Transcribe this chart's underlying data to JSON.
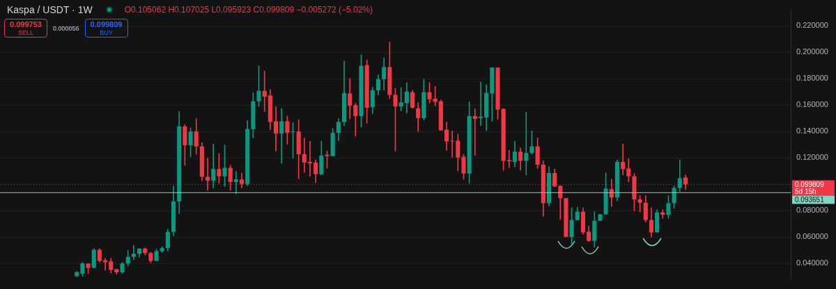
{
  "chart_data": {
    "type": "candlestick",
    "title": "Kaspa / USDT · 1W",
    "categories": [
      null,
      null,
      null,
      null,
      null,
      null,
      null,
      null,
      null,
      null,
      null,
      null,
      null,
      null,
      null,
      null,
      null,
      null,
      null,
      null,
      null,
      null,
      null,
      null,
      null,
      null,
      null,
      null,
      null,
      null,
      null,
      null,
      null,
      null,
      null,
      null,
      null,
      null,
      null,
      null,
      null,
      null,
      null,
      null,
      null,
      null,
      null,
      null,
      null,
      null,
      null,
      null,
      null,
      null,
      null,
      null,
      null,
      null,
      null,
      null,
      null,
      null,
      null,
      null,
      null,
      null,
      null,
      null,
      null,
      null,
      null,
      null,
      null,
      null,
      null,
      null,
      null,
      null,
      null,
      null,
      null,
      null,
      null,
      null,
      null,
      null,
      null,
      null,
      null,
      null,
      null,
      null,
      null,
      null,
      null,
      null,
      null,
      null,
      null,
      null,
      null,
      null,
      null,
      null,
      null,
      null,
      null,
      null,
      null,
      null,
      null,
      null,
      null,
      null,
      null,
      null,
      null,
      null,
      null,
      null,
      null,
      null,
      null,
      null,
      null,
      null,
      null,
      null,
      null,
      null,
      null,
      null,
      null,
      null,
      null,
      null,
      null,
      null,
      null
    ],
    "ohlc": [
      null,
      null,
      null,
      null,
      null,
      null,
      null,
      null,
      null,
      null,
      null,
      null,
      null,
      [
        0.0305,
        0.034,
        0.03,
        0.0335
      ],
      [
        0.0323,
        0.0411,
        0.0303,
        0.04
      ],
      [
        0.04,
        0.04,
        0.0323,
        0.0367
      ],
      [
        0.0367,
        0.0513,
        0.0367,
        0.0504
      ],
      [
        0.0504,
        0.0513,
        0.041,
        0.042
      ],
      [
        0.0425,
        0.044,
        0.035,
        0.041
      ],
      [
        0.0416,
        0.044,
        0.0328,
        0.0352
      ],
      [
        0.0357,
        0.0357,
        0.0318,
        0.0333
      ],
      [
        0.0333,
        0.0411,
        0.0323,
        0.04
      ],
      [
        0.04,
        0.0499,
        0.0381,
        0.045
      ],
      [
        0.045,
        0.0538,
        0.043,
        0.0474
      ],
      [
        0.0474,
        0.0513,
        0.045,
        0.0513
      ],
      [
        0.0513,
        0.0518,
        0.0465,
        0.048
      ],
      [
        0.048,
        0.0485,
        0.0406,
        0.042
      ],
      [
        0.042,
        0.0509,
        0.042,
        0.0494
      ],
      [
        0.0494,
        0.0528,
        0.0484,
        0.0518
      ],
      [
        0.0518,
        0.066,
        0.0494,
        0.064
      ],
      [
        0.064,
        0.0988,
        0.061,
        0.087
      ],
      [
        0.087,
        0.155,
        0.0778,
        0.1438
      ],
      [
        0.1438,
        0.1452,
        0.1144,
        0.1296
      ],
      [
        0.1296,
        0.1428,
        0.1208,
        0.14
      ],
      [
        0.14,
        0.1496,
        0.1227,
        0.1286
      ],
      [
        0.1286,
        0.1315,
        0.1027,
        0.1056
      ],
      [
        0.1056,
        0.1198,
        0.0954,
        0.1027
      ],
      [
        0.1027,
        0.1305,
        0.0973,
        0.1115
      ],
      [
        0.1115,
        0.1232,
        0.1007,
        0.1061
      ],
      [
        0.1061,
        0.1296,
        0.0983,
        0.1125
      ],
      [
        0.1125,
        0.1144,
        0.0954,
        0.1017
      ],
      [
        0.1017,
        0.1095,
        0.0929,
        0.1037
      ],
      [
        0.1037,
        0.1085,
        0.0973,
        0.1002
      ],
      [
        0.1002,
        0.1482,
        0.0988,
        0.1418
      ],
      [
        0.1418,
        0.1692,
        0.135,
        0.1628
      ],
      [
        0.1628,
        0.1897,
        0.1589,
        0.1707
      ],
      [
        0.1707,
        0.1858,
        0.155,
        0.1663
      ],
      [
        0.1672,
        0.1716,
        0.1413,
        0.1472
      ],
      [
        0.1477,
        0.1589,
        0.1252,
        0.1384
      ],
      [
        0.1384,
        0.1574,
        0.1159,
        0.1477
      ],
      [
        0.1477,
        0.1516,
        0.1301,
        0.1389
      ],
      [
        0.1394,
        0.1467,
        0.1198,
        0.14
      ],
      [
        0.14,
        0.1487,
        0.1042,
        0.1227
      ],
      [
        0.1227,
        0.135,
        0.109,
        0.1164
      ],
      [
        0.1169,
        0.1325,
        0.1061,
        0.1159
      ],
      [
        0.1164,
        0.1183,
        0.1012,
        0.1076
      ],
      [
        0.1076,
        0.1325,
        0.1071,
        0.1218
      ],
      [
        0.1223,
        0.1252,
        0.112,
        0.1213
      ],
      [
        0.1213,
        0.1423,
        0.1213,
        0.1389
      ],
      [
        0.1389,
        0.1497,
        0.133,
        0.1472
      ],
      [
        0.1472,
        0.1932,
        0.1443,
        0.1692
      ],
      [
        0.1687,
        0.18,
        0.1496,
        0.1594
      ],
      [
        0.1599,
        0.1614,
        0.1364,
        0.1516
      ],
      [
        0.1516,
        0.198,
        0.1433,
        0.1897
      ],
      [
        0.1902,
        0.1941,
        0.1462,
        0.158
      ],
      [
        0.1584,
        0.1736,
        0.1535,
        0.1711
      ],
      [
        0.1711,
        0.1829,
        0.1677,
        0.1795
      ],
      [
        0.1795,
        0.1956,
        0.1711,
        0.1887
      ],
      [
        0.1887,
        0.2078,
        0.1648,
        0.1677
      ],
      [
        0.1677,
        0.1726,
        0.1252,
        0.1589
      ],
      [
        0.1589,
        0.1731,
        0.1555,
        0.1619
      ],
      [
        0.1614,
        0.177,
        0.154,
        0.1702
      ],
      [
        0.1697,
        0.1711,
        0.1575,
        0.158
      ],
      [
        0.1575,
        0.1619,
        0.14,
        0.1501
      ],
      [
        0.1501,
        0.1795,
        0.1487,
        0.1697
      ],
      [
        0.1697,
        0.177,
        0.1614,
        0.1643
      ],
      [
        0.1648,
        0.1741,
        0.1594,
        0.1624
      ],
      [
        0.1628,
        0.1638,
        0.1408,
        0.1408
      ],
      [
        0.1413,
        0.1472,
        0.1257,
        0.1325
      ],
      [
        0.133,
        0.1403,
        0.1203,
        0.1325
      ],
      [
        0.133,
        0.1379,
        0.11,
        0.1203
      ],
      [
        0.1208,
        0.1227,
        0.1037,
        0.1081
      ],
      [
        0.1081,
        0.1624,
        0.1007,
        0.1516
      ],
      [
        0.1516,
        0.157,
        0.1218,
        0.1496
      ],
      [
        0.1501,
        0.1775,
        0.1443,
        0.1511
      ],
      [
        0.1506,
        0.1755,
        0.1408,
        0.1692
      ],
      [
        0.1687,
        0.1883,
        0.1477,
        0.1883
      ],
      [
        0.1883,
        0.1883,
        0.1491,
        0.1565
      ],
      [
        0.157,
        0.1574,
        0.1105,
        0.1178
      ],
      [
        0.1183,
        0.1257,
        0.1125,
        0.1174
      ],
      [
        0.1169,
        0.1325,
        0.113,
        0.1247
      ],
      [
        0.1247,
        0.1276,
        0.1105,
        0.1178
      ],
      [
        0.1178,
        0.1545,
        0.1071,
        0.1237
      ],
      [
        0.1237,
        0.1403,
        0.1227,
        0.1286
      ],
      [
        0.1286,
        0.135,
        0.112,
        0.1149
      ],
      [
        0.1149,
        0.1178,
        0.0758,
        0.0856
      ],
      [
        0.0856,
        0.1134,
        0.0836,
        0.1086
      ],
      [
        0.1086,
        0.1115,
        0.0983,
        0.0983
      ],
      [
        0.0988,
        0.0988,
        0.0734,
        0.0895
      ],
      [
        0.0895,
        0.0895,
        0.0602,
        0.0602
      ],
      [
        0.0602,
        0.0822,
        0.0548,
        0.0729
      ],
      [
        0.0729,
        0.0826,
        0.0729,
        0.0792
      ],
      [
        0.0792,
        0.0822,
        0.0621,
        0.0636
      ],
      [
        0.0641,
        0.0685,
        0.0567,
        0.0572
      ],
      [
        0.0572,
        0.0792,
        0.0523,
        0.0724
      ],
      [
        0.0724,
        0.0773,
        0.0724,
        0.0773
      ],
      [
        0.0773,
        0.1086,
        0.0773,
        0.0968
      ],
      [
        0.0963,
        0.1037,
        0.0831,
        0.09
      ],
      [
        0.09,
        0.1183,
        0.0875,
        0.1169
      ],
      [
        0.1169,
        0.1305,
        0.1071,
        0.1115
      ],
      [
        0.112,
        0.1193,
        0.1017,
        0.1061
      ],
      [
        0.1061,
        0.1081,
        0.0797,
        0.0885
      ],
      [
        0.0885,
        0.0914,
        0.0792,
        0.0861
      ],
      [
        0.0861,
        0.0914,
        0.0714,
        0.0729
      ],
      [
        0.0729,
        0.0822,
        0.0602,
        0.0636
      ],
      [
        0.0636,
        0.0807,
        0.0636,
        0.0787
      ],
      [
        0.0787,
        0.0807,
        0.0743,
        0.0768
      ],
      [
        0.0768,
        0.0914,
        0.0743,
        0.0856
      ],
      [
        0.0856,
        0.0988,
        0.0817,
        0.0973
      ],
      [
        0.0973,
        0.1183,
        0.0944,
        0.1046
      ],
      [
        0.105062,
        0.107025,
        0.095923,
        0.099809
      ],
      null,
      null,
      null,
      null,
      null,
      null,
      null,
      null,
      null,
      null,
      null,
      null,
      null,
      null,
      null,
      null,
      null,
      null
    ],
    "colors": [
      null,
      null,
      null,
      null,
      null,
      null,
      null,
      null,
      null,
      null,
      null,
      null,
      null,
      "#089981",
      "#089981",
      "#f23645",
      "#089981",
      "#f23645",
      "#f23645",
      "#f23645",
      "#f23645",
      "#089981",
      "#089981",
      "#089981",
      "#089981",
      "#f23645",
      "#f23645",
      "#089981",
      "#089981",
      "#089981",
      "#089981",
      "#089981",
      "#f23645",
      "#089981",
      "#f23645",
      "#f23645",
      "#f23645",
      "#089981",
      "#f23645",
      "#089981",
      "#f23645",
      "#089981",
      "#f23645",
      "#089981",
      "#089981",
      "#089981",
      "#f23645",
      "#f23645",
      "#f23645",
      "#089981",
      "#f23645",
      "#089981",
      "#f23645",
      "#f23645",
      "#f23645",
      "#f23645",
      "#089981",
      "#f23645",
      "#089981",
      "#089981",
      "#089981",
      "#f23645",
      "#f23645",
      "#089981",
      "#f23645",
      "#089981",
      "#089981",
      "#089981",
      "#f23645",
      "#f23645",
      "#089981",
      "#089981",
      "#f23645",
      "#f23645",
      "#089981",
      "#f23645",
      "#f23645",
      "#f23645",
      "#f23645",
      "#f23645",
      "#f23645",
      "#f23645",
      "#089981",
      "#f23645",
      "#089981",
      "#089981",
      "#089981",
      "#f23645",
      "#f23645",
      "#f23645",
      "#089981",
      "#f23645",
      "#089981",
      "#089981",
      "#f23645",
      "#f23645",
      "#089981",
      "#f23645",
      "#f23645",
      "#f23645",
      "#089981",
      "#089981",
      "#f23645",
      "#f23645",
      "#089981",
      "#089981",
      "#089981",
      "#f23645",
      "#089981",
      "#f23645",
      "#f23645",
      "#f23645",
      "#f23645",
      "#f23645",
      "#f23645",
      "#089981",
      "#f23645",
      "#089981",
      "#089981",
      "#089981",
      "#f23645",
      null,
      null,
      null,
      null,
      null,
      null,
      null,
      null,
      null,
      null,
      null,
      null,
      null,
      null,
      null,
      null,
      null,
      null
    ],
    "ylim": [
      0.0284,
      0.2318
    ],
    "yticks": [
      {
        "value": 0.04,
        "label": "0.040000"
      },
      {
        "value": 0.06,
        "label": "0.060000"
      },
      {
        "value": 0.08,
        "label": "0.080000"
      },
      {
        "value": 0.12,
        "label": "0.120000"
      },
      {
        "value": 0.14,
        "label": "0.140000"
      },
      {
        "value": 0.16,
        "label": "0.160000"
      },
      {
        "value": 0.18,
        "label": "0.180000"
      },
      {
        "value": 0.2,
        "label": "0.200000"
      },
      {
        "value": 0.22,
        "label": "0.220000"
      }
    ],
    "tick_labels": "y",
    "grid": "y",
    "ref_lines": [
      {
        "axis": "y",
        "value": 0.099809,
        "label": "0.099809",
        "color": "#f23645",
        "line_style": "dotted"
      },
      {
        "axis": "y",
        "value": 0.093651,
        "label": "0.093651",
        "color": "#7fd8c3",
        "line_style": "solid"
      }
    ],
    "annotations": [
      "O0.105062 H0.107025 L0.095923 C0.099809 −0.005272 (−5.02%)",
      "0.099753",
      "SELL",
      "0.000056",
      "0.099809",
      "BUY",
      "5d 15h"
    ]
  }
}
